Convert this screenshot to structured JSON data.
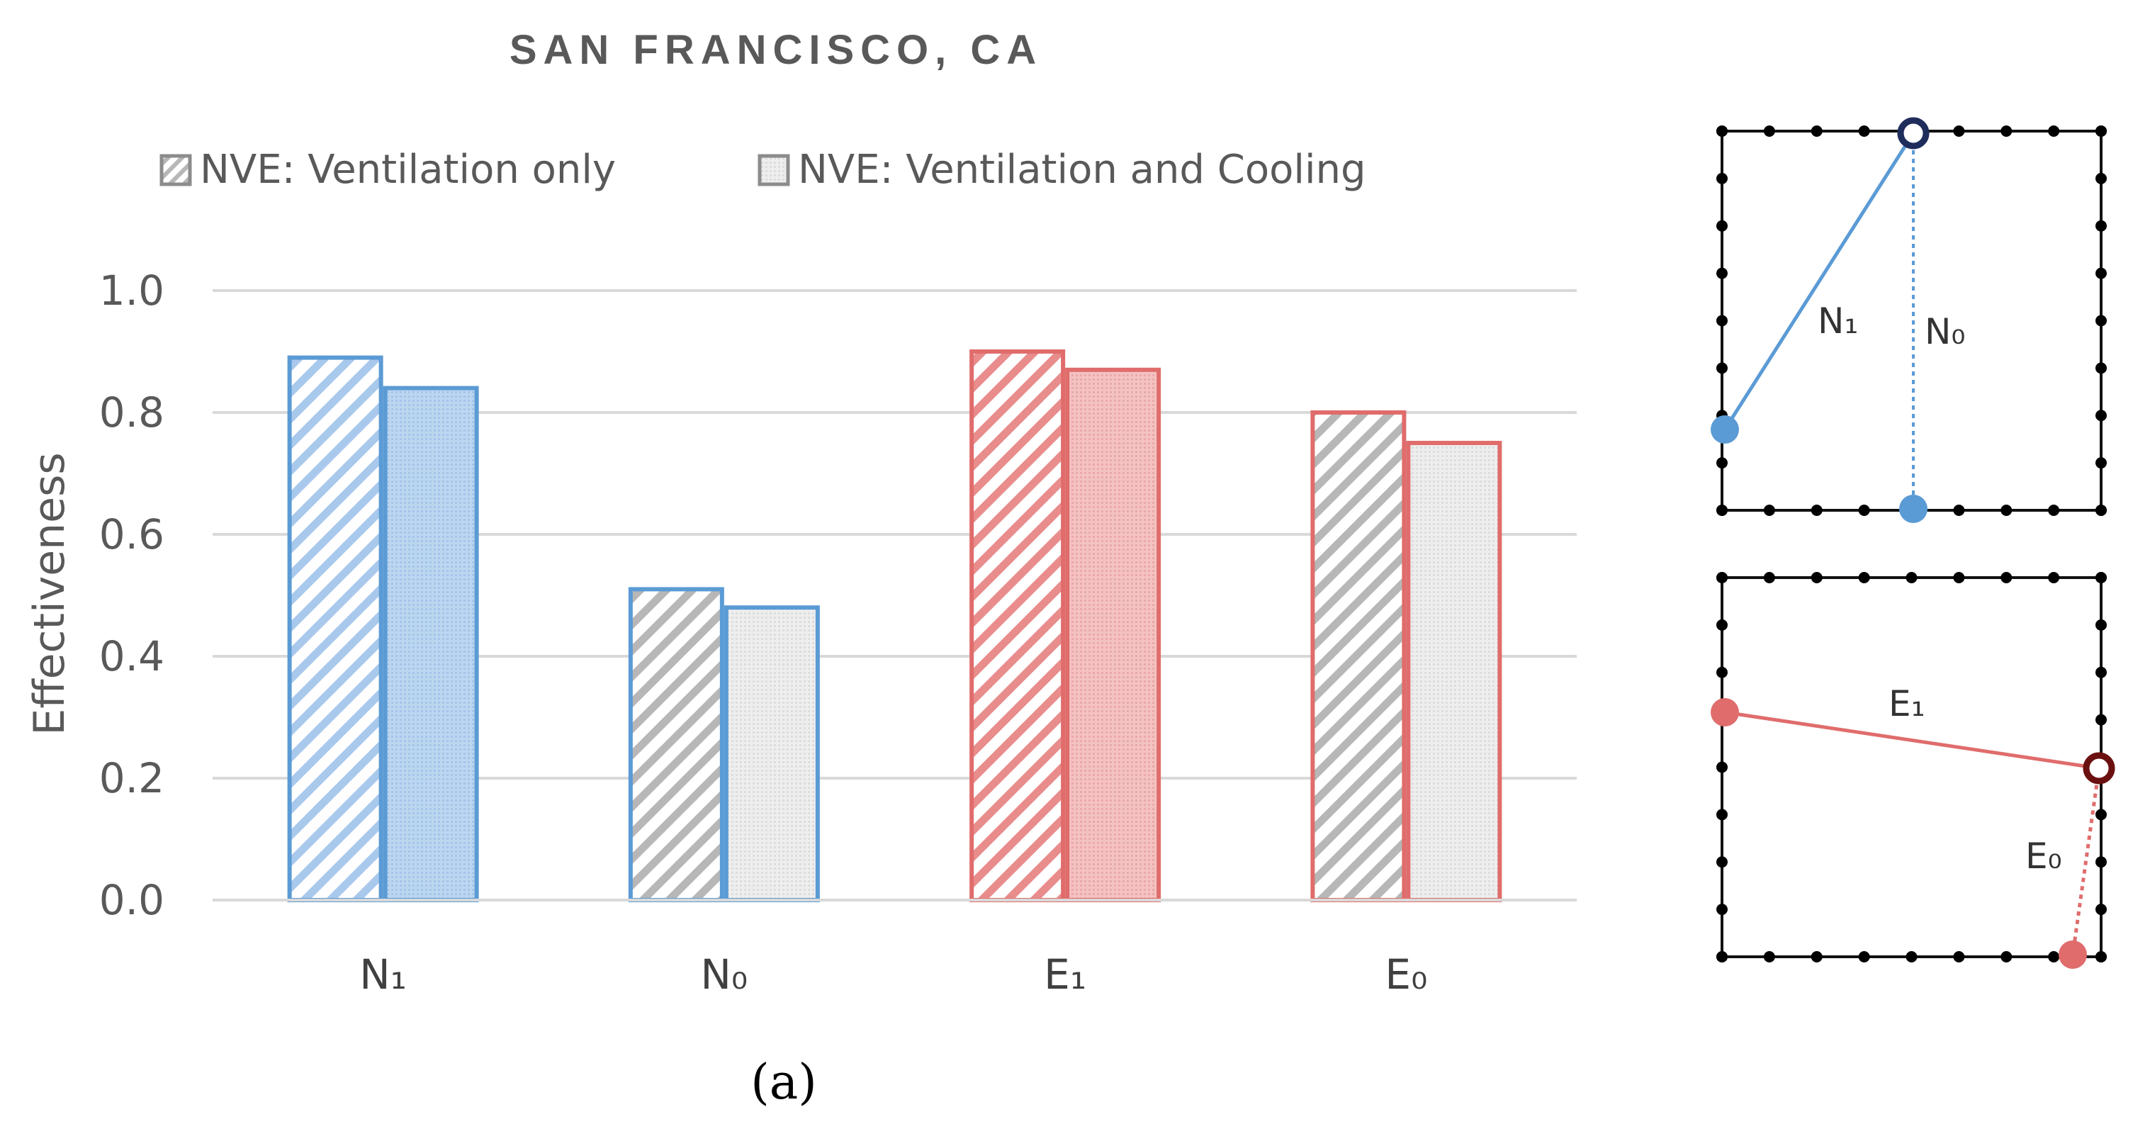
{
  "chart_data": {
    "type": "bar",
    "title": "SAN FRANCISCO, CA",
    "ylabel": "Effectiveness",
    "xlabel": "",
    "ylim": [
      0,
      1.0
    ],
    "yticks": [
      "0.0",
      "0.2",
      "0.4",
      "0.6",
      "0.8",
      "1.0"
    ],
    "grid": true,
    "legend_position": "top",
    "categories": [
      "N₁",
      "N₀",
      "E₁",
      "E₀"
    ],
    "series": [
      {
        "name": "NVE: Ventilation only",
        "pattern": "hatched",
        "values": [
          0.89,
          0.51,
          0.9,
          0.8
        ]
      },
      {
        "name": "NVE: Ventilation and Cooling",
        "pattern": "dotted",
        "values": [
          0.84,
          0.48,
          0.87,
          0.75
        ]
      }
    ],
    "category_colors": {
      "N₁": {
        "stroke": "#5b9bd5",
        "hatch": "#a9c9ec",
        "fill": "#bcd6f0"
      },
      "N₀": {
        "stroke": "#5b9bd5",
        "hatch": "#b7b7b7",
        "fill": "#e6e6e6"
      },
      "E₁": {
        "stroke": "#e06c6c",
        "hatch": "#e98c8c",
        "fill": "#f2b8b8"
      },
      "E₀": {
        "stroke": "#e06c6c",
        "hatch": "#b7b7b7",
        "fill": "#e6e6e6"
      }
    }
  },
  "caption": "(a)",
  "diagrams": {
    "top": {
      "labels": [
        "N₁",
        "N₀"
      ],
      "line_color": "#5b9bd5",
      "dark_point_color": "#1f2d5c"
    },
    "bottom": {
      "labels": [
        "E₁",
        "E₀"
      ],
      "line_color": "#e06c6c",
      "dark_point_color": "#6b1010"
    }
  }
}
